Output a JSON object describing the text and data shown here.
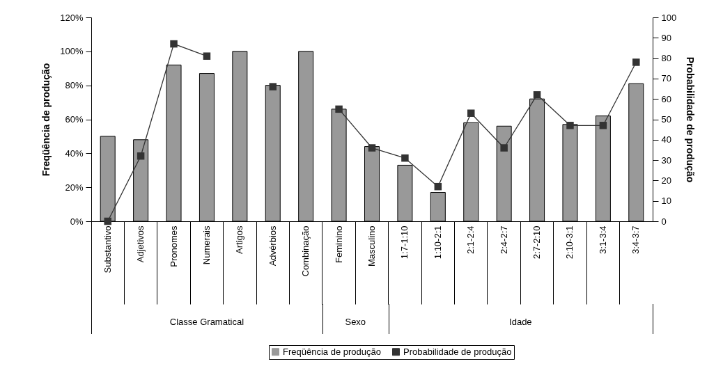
{
  "chart_data": {
    "type": "bar",
    "categories": [
      "Substantivo",
      "Adjetivos",
      "Pronomes",
      "Numerais",
      "Artigos",
      "Advérbios",
      "Combinação",
      "Feminino",
      "Masculino",
      "1:7-1:10",
      "1:10-2:1",
      "2:1-2:4",
      "2:4-2:7",
      "2:7-2:10",
      "2:10-3:1",
      "3:1-3:4",
      "3:4-3:7"
    ],
    "series": [
      {
        "name": "Freqüência de produção",
        "color": "#999999",
        "values": [
          50,
          48,
          92,
          87,
          100,
          80,
          100,
          66,
          44,
          33,
          17,
          58,
          56,
          72,
          57,
          62,
          81
        ]
      },
      {
        "name": "Probabilidade de produção",
        "type": "line",
        "axis": "y2",
        "color": "#333333",
        "values": [
          0,
          32,
          87,
          81,
          null,
          66,
          null,
          55,
          36,
          31,
          17,
          53,
          36,
          62,
          47,
          47,
          78
        ]
      }
    ],
    "ylabel": "Freqüência de produção",
    "y2label": "Probabilidade de produção",
    "ylim": [
      0,
      120
    ],
    "yticks": [
      {
        "value": 0,
        "label": "0%"
      },
      {
        "value": 20,
        "label": "20%"
      },
      {
        "value": 40,
        "label": "40%"
      },
      {
        "value": 60,
        "label": "60%"
      },
      {
        "value": 80,
        "label": "80%"
      },
      {
        "value": 100,
        "label": "100%"
      },
      {
        "value": 120,
        "label": "120%"
      }
    ],
    "y2lim": [
      0,
      100
    ],
    "y2ticks": [
      0,
      10,
      20,
      30,
      40,
      50,
      60,
      70,
      80,
      90,
      100
    ],
    "annotations": [
      "Classe Gramatical",
      "Sexo",
      "Idade"
    ],
    "legend": "bottom",
    "marker": "square",
    "grid": false
  }
}
